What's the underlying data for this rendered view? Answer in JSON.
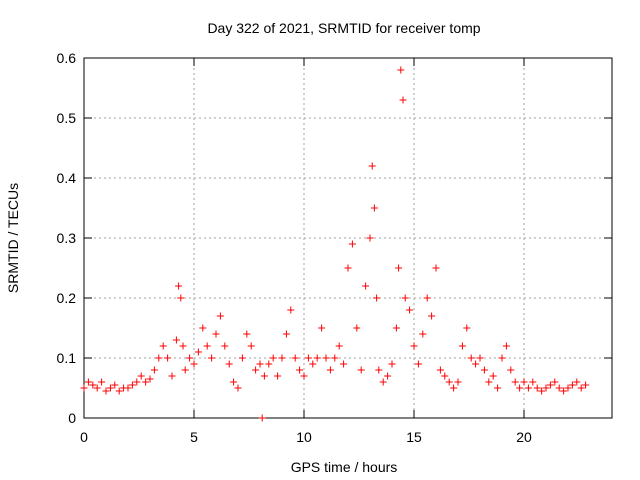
{
  "chart_data": {
    "type": "scatter",
    "title": "Day 322 of 2021, SRMTID for receiver tomp",
    "xlabel": "GPS time / hours",
    "ylabel": "SRMTID / TECUs",
    "xlim": [
      0,
      24
    ],
    "ylim": [
      0,
      0.6
    ],
    "xticks": [
      0,
      5,
      10,
      15,
      20
    ],
    "yticks": [
      0,
      0.1,
      0.2,
      0.3,
      0.4,
      0.5,
      0.6
    ],
    "grid": true,
    "marker": "+",
    "color": "#ff0000",
    "series": [
      {
        "name": "SRMTID",
        "x": [
          0.0,
          0.2,
          0.4,
          0.6,
          0.8,
          1.0,
          1.2,
          1.4,
          1.6,
          1.8,
          2.0,
          2.2,
          2.4,
          2.6,
          2.8,
          3.0,
          3.2,
          3.4,
          3.6,
          3.8,
          4.0,
          4.2,
          4.3,
          4.4,
          4.5,
          4.6,
          4.8,
          5.0,
          5.2,
          5.4,
          5.6,
          5.8,
          6.0,
          6.2,
          6.4,
          6.6,
          6.8,
          7.0,
          7.2,
          7.4,
          7.6,
          7.8,
          8.0,
          8.2,
          8.4,
          8.6,
          8.8,
          9.0,
          9.2,
          9.4,
          9.6,
          9.8,
          10.0,
          10.2,
          10.4,
          10.6,
          10.8,
          11.0,
          11.2,
          11.4,
          11.6,
          11.8,
          12.0,
          12.2,
          12.4,
          12.6,
          12.8,
          13.0,
          13.1,
          13.2,
          13.3,
          13.4,
          13.6,
          13.8,
          14.0,
          14.2,
          14.3,
          14.4,
          14.5,
          14.6,
          14.8,
          15.0,
          15.2,
          15.4,
          15.6,
          15.8,
          16.0,
          16.2,
          16.4,
          16.6,
          16.8,
          17.0,
          17.2,
          17.4,
          17.6,
          17.8,
          18.0,
          18.2,
          18.4,
          18.6,
          18.8,
          19.0,
          19.2,
          19.4,
          19.6,
          19.8,
          20.0,
          20.2,
          20.4,
          20.6,
          20.8,
          21.0,
          21.2,
          21.4,
          21.6,
          21.8,
          22.0,
          22.2,
          22.4,
          22.6,
          22.8,
          8.1
        ],
        "y": [
          0.05,
          0.06,
          0.055,
          0.05,
          0.06,
          0.045,
          0.05,
          0.055,
          0.045,
          0.05,
          0.05,
          0.055,
          0.06,
          0.07,
          0.06,
          0.065,
          0.08,
          0.1,
          0.12,
          0.1,
          0.07,
          0.13,
          0.22,
          0.2,
          0.12,
          0.08,
          0.1,
          0.09,
          0.11,
          0.15,
          0.12,
          0.1,
          0.14,
          0.17,
          0.12,
          0.09,
          0.06,
          0.05,
          0.1,
          0.14,
          0.12,
          0.08,
          0.09,
          0.07,
          0.09,
          0.1,
          0.07,
          0.1,
          0.14,
          0.18,
          0.1,
          0.08,
          0.07,
          0.1,
          0.09,
          0.1,
          0.15,
          0.1,
          0.08,
          0.1,
          0.12,
          0.09,
          0.25,
          0.29,
          0.15,
          0.08,
          0.22,
          0.3,
          0.42,
          0.35,
          0.2,
          0.08,
          0.06,
          0.07,
          0.09,
          0.15,
          0.25,
          0.58,
          0.53,
          0.2,
          0.18,
          0.12,
          0.09,
          0.14,
          0.2,
          0.17,
          0.25,
          0.08,
          0.07,
          0.06,
          0.05,
          0.06,
          0.12,
          0.15,
          0.1,
          0.09,
          0.1,
          0.08,
          0.06,
          0.07,
          0.05,
          0.1,
          0.12,
          0.08,
          0.06,
          0.05,
          0.06,
          0.05,
          0.06,
          0.05,
          0.045,
          0.05,
          0.055,
          0.06,
          0.05,
          0.045,
          0.05,
          0.055,
          0.06,
          0.05,
          0.055,
          0.0
        ]
      }
    ]
  }
}
